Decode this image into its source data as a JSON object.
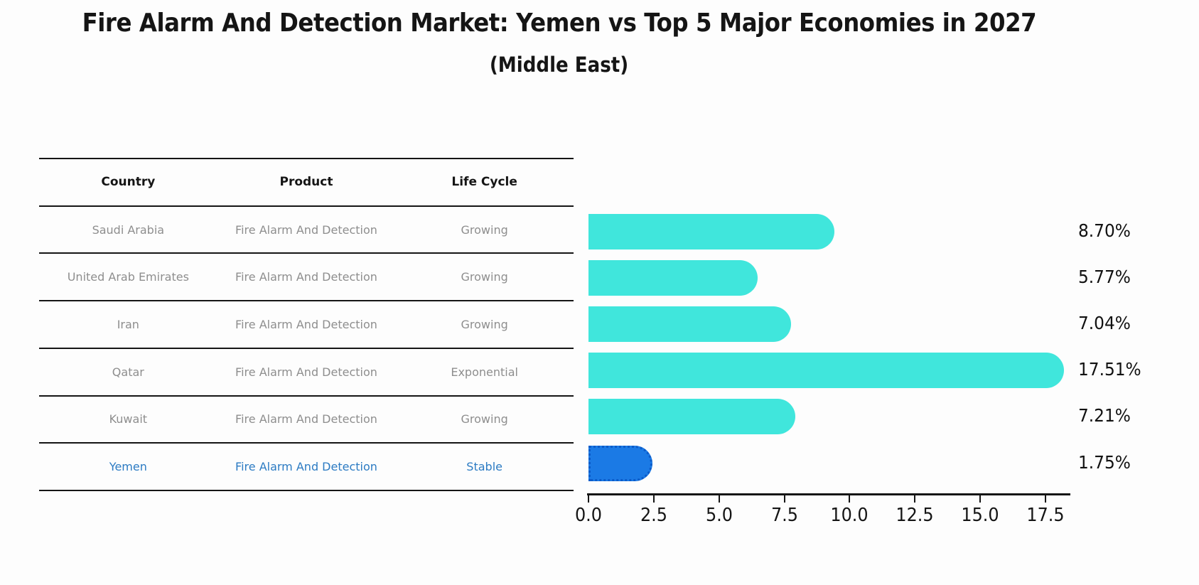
{
  "title": "Fire Alarm And Detection Market: Yemen vs Top 5 Major Economies in 2027",
  "subtitle": "(Middle East)",
  "colors": {
    "background": "#FDFDFD",
    "bar": "#40E6DC",
    "highlight_bar": "#1B7AE5",
    "highlight_border": "#0B5BC9",
    "highlight_text": "#2C7BC3",
    "row_text": "#8E8E8E",
    "line": "#151515"
  },
  "table": {
    "headers": [
      "Country",
      "Product",
      "Life Cycle"
    ],
    "rows": [
      {
        "country": "Saudi Arabia",
        "product": "Fire Alarm And Detection",
        "life_cycle": "Growing",
        "highlight": false
      },
      {
        "country": "United Arab Emirates",
        "product": "Fire Alarm And Detection",
        "life_cycle": "Growing",
        "highlight": false
      },
      {
        "country": "Iran",
        "product": "Fire Alarm And Detection",
        "life_cycle": "Growing",
        "highlight": false
      },
      {
        "country": "Qatar",
        "product": "Fire Alarm And Detection",
        "life_cycle": "Exponential",
        "highlight": false
      },
      {
        "country": "Kuwait",
        "product": "Fire Alarm And Detection",
        "life_cycle": "Growing",
        "highlight": false
      },
      {
        "country": "Yemen",
        "product": "Fire Alarm And Detection",
        "life_cycle": "Stable",
        "highlight": true
      }
    ]
  },
  "chart_data": {
    "type": "bar",
    "orientation": "horizontal",
    "title": "Fire Alarm And Detection Market: Yemen vs Top 5 Major Economies in 2027 (Middle East)",
    "categories": [
      "Saudi Arabia",
      "United Arab Emirates",
      "Iran",
      "Qatar",
      "Kuwait",
      "Yemen"
    ],
    "values": [
      8.7,
      5.77,
      7.04,
      17.51,
      7.21,
      1.75
    ],
    "value_labels": [
      "8.70%",
      "5.77%",
      "7.04%",
      "17.51%",
      "7.21%",
      "1.75%"
    ],
    "highlight_category": "Yemen",
    "xlabel": "",
    "ylabel": "",
    "xlim": [
      0.0,
      18.4
    ],
    "xticks": [
      0.0,
      2.5,
      5.0,
      7.5,
      10.0,
      12.5,
      15.0,
      17.5
    ],
    "xtick_labels": [
      "0.0",
      "2.5",
      "5.0",
      "7.5",
      "10.0",
      "12.5",
      "15.0",
      "17.5"
    ],
    "grid": false,
    "legend": false
  }
}
